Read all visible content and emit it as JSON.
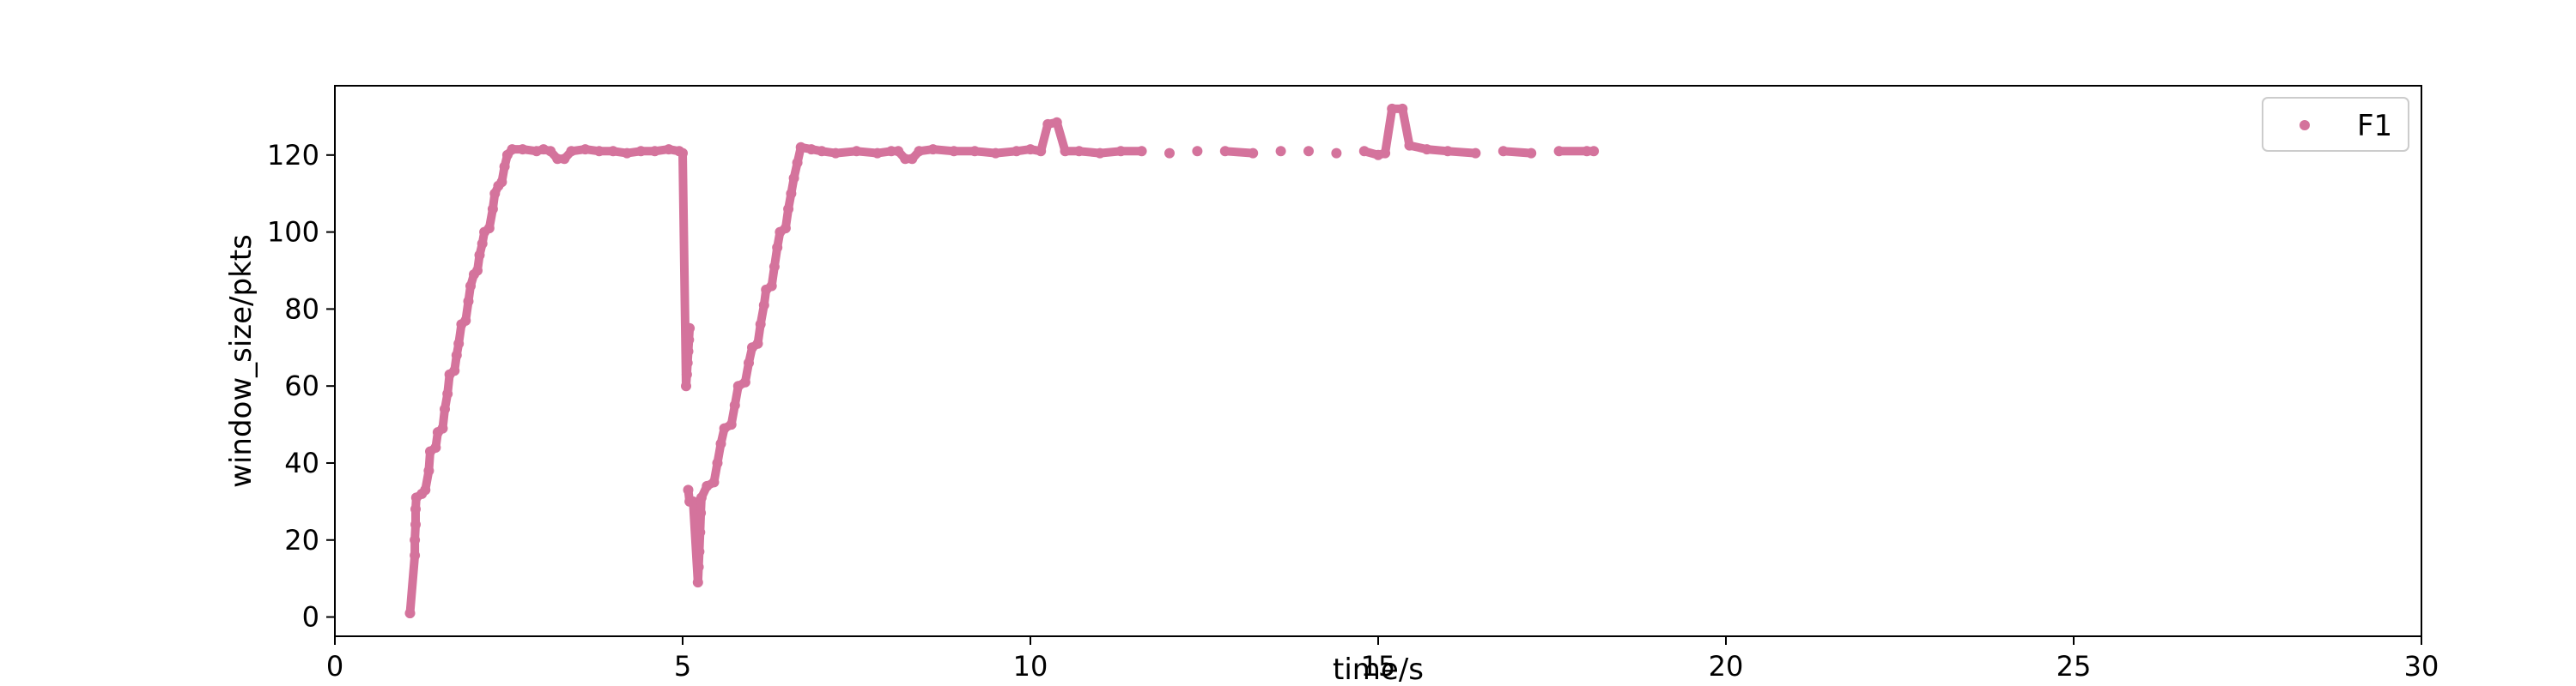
{
  "chart_data": {
    "type": "scatter",
    "title": "",
    "xlabel": "time/s",
    "ylabel": "window_size/pkts",
    "xlim": [
      0,
      30
    ],
    "ylim": [
      -5,
      138
    ],
    "xticks": [
      0,
      5,
      10,
      15,
      20,
      25,
      30
    ],
    "yticks": [
      0,
      20,
      40,
      60,
      80,
      100,
      120
    ],
    "grid": false,
    "legend_position": "top-right",
    "colors": {
      "series": "#d4739c",
      "axes": "#000000",
      "legend_border": "#cccccc"
    },
    "series": [
      {
        "name": "F1",
        "points": [
          [
            1.08,
            1
          ],
          [
            1.15,
            16
          ],
          [
            1.15,
            20
          ],
          [
            1.16,
            24
          ],
          [
            1.16,
            28
          ],
          [
            1.17,
            31
          ],
          [
            1.25,
            32
          ],
          [
            1.3,
            33
          ],
          [
            1.35,
            38
          ],
          [
            1.37,
            43
          ],
          [
            1.45,
            44
          ],
          [
            1.48,
            48
          ],
          [
            1.55,
            49
          ],
          [
            1.58,
            54
          ],
          [
            1.62,
            58
          ],
          [
            1.65,
            63
          ],
          [
            1.72,
            64
          ],
          [
            1.75,
            68
          ],
          [
            1.78,
            71
          ],
          [
            1.82,
            76
          ],
          [
            1.88,
            77
          ],
          [
            1.92,
            82
          ],
          [
            1.95,
            86
          ],
          [
            2.0,
            89
          ],
          [
            2.05,
            90
          ],
          [
            2.08,
            94
          ],
          [
            2.12,
            97
          ],
          [
            2.15,
            100
          ],
          [
            2.22,
            101
          ],
          [
            2.27,
            106
          ],
          [
            2.3,
            110
          ],
          [
            2.35,
            112
          ],
          [
            2.4,
            113
          ],
          [
            2.44,
            117
          ],
          [
            2.48,
            120
          ],
          [
            2.55,
            121.5
          ],
          [
            2.7,
            121.5
          ],
          [
            2.9,
            121
          ],
          [
            3.0,
            121.5
          ],
          [
            3.1,
            121
          ],
          [
            3.2,
            119
          ],
          [
            3.3,
            119
          ],
          [
            3.4,
            121
          ],
          [
            3.6,
            121.5
          ],
          [
            3.8,
            121
          ],
          [
            4.0,
            121
          ],
          [
            4.2,
            120.5
          ],
          [
            4.4,
            121
          ],
          [
            4.6,
            121
          ],
          [
            4.8,
            121.5
          ],
          [
            4.95,
            121
          ],
          [
            5.0,
            120.5
          ],
          [
            5.05,
            60
          ],
          [
            5.06,
            63
          ],
          [
            5.07,
            66
          ],
          [
            5.08,
            69
          ],
          [
            5.09,
            72
          ],
          [
            5.1,
            75
          ],
          [
            5.08,
            33
          ],
          [
            5.1,
            30
          ],
          [
            5.15,
            30
          ],
          [
            5.22,
            9
          ],
          [
            5.23,
            13
          ],
          [
            5.24,
            17
          ],
          [
            5.25,
            22
          ],
          [
            5.26,
            27
          ],
          [
            5.27,
            31
          ],
          [
            5.35,
            34
          ],
          [
            5.45,
            35
          ],
          [
            5.5,
            40
          ],
          [
            5.55,
            45
          ],
          [
            5.6,
            49
          ],
          [
            5.7,
            50
          ],
          [
            5.75,
            55
          ],
          [
            5.8,
            60
          ],
          [
            5.9,
            61
          ],
          [
            5.95,
            66
          ],
          [
            6.0,
            70
          ],
          [
            6.08,
            71
          ],
          [
            6.12,
            76
          ],
          [
            6.17,
            81
          ],
          [
            6.2,
            85
          ],
          [
            6.28,
            86
          ],
          [
            6.32,
            91
          ],
          [
            6.36,
            96
          ],
          [
            6.4,
            100
          ],
          [
            6.48,
            101
          ],
          [
            6.52,
            106
          ],
          [
            6.56,
            110
          ],
          [
            6.6,
            114
          ],
          [
            6.65,
            118
          ],
          [
            6.7,
            122
          ],
          [
            6.85,
            121.5
          ],
          [
            7.0,
            121
          ],
          [
            7.2,
            120.5
          ],
          [
            7.5,
            121
          ],
          [
            7.8,
            120.5
          ],
          [
            8.0,
            121
          ],
          [
            8.1,
            121
          ],
          [
            8.2,
            119
          ],
          [
            8.3,
            119
          ],
          [
            8.4,
            121
          ],
          [
            8.6,
            121.5
          ],
          [
            8.9,
            121
          ],
          [
            9.2,
            121
          ],
          [
            9.5,
            120.5
          ],
          [
            9.8,
            121
          ],
          [
            10.0,
            121.5
          ],
          [
            10.15,
            121
          ],
          [
            10.25,
            128
          ],
          [
            10.38,
            128.5
          ],
          [
            10.5,
            121
          ],
          [
            10.7,
            121
          ],
          [
            11.0,
            120.5
          ],
          [
            11.3,
            121
          ],
          [
            11.6,
            121
          ],
          [
            12.0,
            120.5
          ],
          [
            12.4,
            121
          ],
          [
            12.8,
            121
          ],
          [
            13.2,
            120.5
          ],
          [
            13.6,
            121
          ],
          [
            14.0,
            121
          ],
          [
            14.4,
            120.5
          ],
          [
            14.8,
            121
          ],
          [
            15.0,
            120
          ],
          [
            15.1,
            120.5
          ],
          [
            15.2,
            132
          ],
          [
            15.35,
            132
          ],
          [
            15.45,
            122.5
          ],
          [
            15.7,
            121.5
          ],
          [
            16.0,
            121
          ],
          [
            16.4,
            120.5
          ],
          [
            16.8,
            121
          ],
          [
            17.2,
            120.5
          ],
          [
            17.6,
            121
          ],
          [
            18.0,
            121
          ],
          [
            18.1,
            121
          ]
        ]
      }
    ]
  }
}
